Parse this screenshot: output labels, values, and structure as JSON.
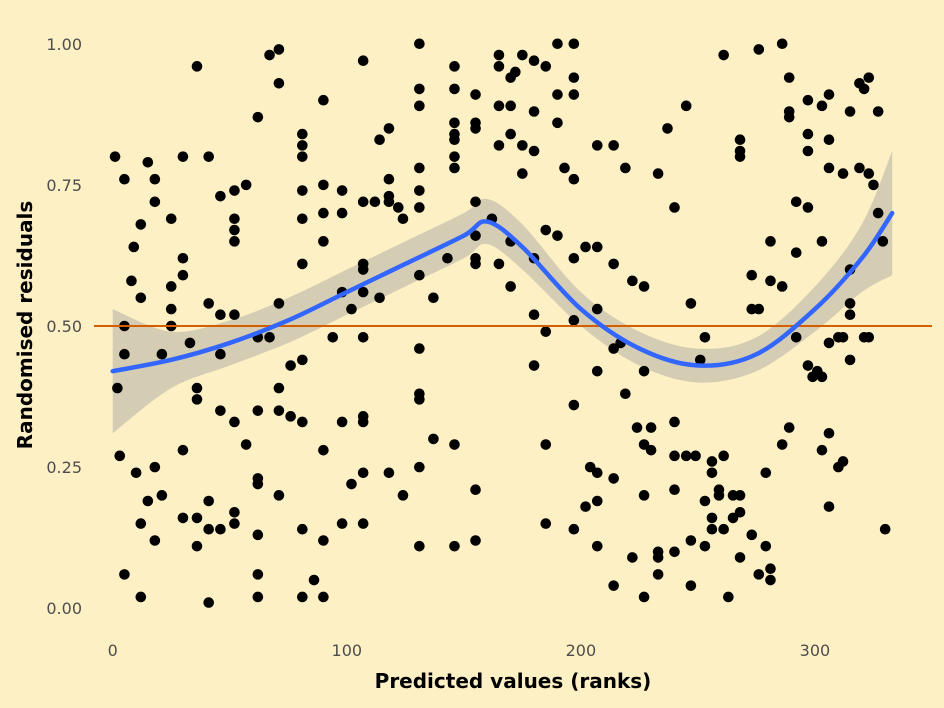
{
  "chart_data": {
    "type": "scatter",
    "xlabel": "Predicted values (ranks)",
    "ylabel": "Randomised residuals",
    "xlim": [
      -8,
      350
    ],
    "ylim": [
      -0.035,
      1.035
    ],
    "x_ticks": [
      0,
      100,
      200,
      300
    ],
    "x_tick_labels": [
      "0",
      "100",
      "200",
      "300"
    ],
    "y_ticks": [
      0.0,
      0.25,
      0.5,
      0.75,
      1.0
    ],
    "y_tick_labels": [
      "0.00",
      "0.25",
      "0.50",
      "0.75",
      "1.00"
    ],
    "grid": false,
    "reference_line": {
      "y": 0.5,
      "color": "#D55E00"
    },
    "colors": {
      "background": "#FEF0C5",
      "points": "#000000",
      "smooth": "#3366FF",
      "ribbon": "#999999"
    },
    "smooth": {
      "x": [
        0,
        25,
        50,
        75,
        100,
        125,
        150,
        160,
        175,
        200,
        225,
        250,
        275,
        300,
        320,
        333
      ],
      "y": [
        0.42,
        0.44,
        0.47,
        0.51,
        0.56,
        0.61,
        0.66,
        0.685,
        0.64,
        0.53,
        0.46,
        0.43,
        0.45,
        0.53,
        0.62,
        0.7
      ],
      "lower": [
        0.31,
        0.39,
        0.43,
        0.47,
        0.52,
        0.57,
        0.62,
        0.645,
        0.6,
        0.5,
        0.43,
        0.4,
        0.42,
        0.49,
        0.56,
        0.59
      ],
      "upper": [
        0.53,
        0.49,
        0.51,
        0.55,
        0.6,
        0.65,
        0.7,
        0.725,
        0.68,
        0.56,
        0.49,
        0.46,
        0.48,
        0.57,
        0.68,
        0.81
      ]
    },
    "points": [
      [
        1,
        0.8
      ],
      [
        2,
        0.39
      ],
      [
        3,
        0.27
      ],
      [
        5,
        0.5
      ],
      [
        5,
        0.45
      ],
      [
        5,
        0.76
      ],
      [
        5,
        0.06
      ],
      [
        8,
        0.58
      ],
      [
        9,
        0.64
      ],
      [
        10,
        0.24
      ],
      [
        12,
        0.55
      ],
      [
        12,
        0.68
      ],
      [
        12,
        0.15
      ],
      [
        12,
        0.02
      ],
      [
        15,
        0.79
      ],
      [
        15,
        0.19
      ],
      [
        18,
        0.76
      ],
      [
        18,
        0.72
      ],
      [
        18,
        0.25
      ],
      [
        18,
        0.12
      ],
      [
        21,
        0.45
      ],
      [
        21,
        0.2
      ],
      [
        25,
        0.69
      ],
      [
        25,
        0.57
      ],
      [
        25,
        0.53
      ],
      [
        25,
        0.5
      ],
      [
        30,
        0.8
      ],
      [
        30,
        0.62
      ],
      [
        30,
        0.59
      ],
      [
        30,
        0.28
      ],
      [
        30,
        0.16
      ],
      [
        33,
        0.47
      ],
      [
        36,
        0.96
      ],
      [
        36,
        0.39
      ],
      [
        36,
        0.37
      ],
      [
        36,
        0.16
      ],
      [
        36,
        0.11
      ],
      [
        41,
        0.8
      ],
      [
        41,
        0.54
      ],
      [
        41,
        0.19
      ],
      [
        41,
        0.14
      ],
      [
        41,
        0.01
      ],
      [
        46,
        0.73
      ],
      [
        46,
        0.52
      ],
      [
        46,
        0.45
      ],
      [
        46,
        0.35
      ],
      [
        46,
        0.14
      ],
      [
        52,
        0.74
      ],
      [
        52,
        0.69
      ],
      [
        52,
        0.67
      ],
      [
        52,
        0.65
      ],
      [
        52,
        0.52
      ],
      [
        52,
        0.33
      ],
      [
        52,
        0.17
      ],
      [
        52,
        0.15
      ],
      [
        57,
        0.75
      ],
      [
        57,
        0.29
      ],
      [
        62,
        0.87
      ],
      [
        62,
        0.48
      ],
      [
        62,
        0.35
      ],
      [
        62,
        0.23
      ],
      [
        62,
        0.22
      ],
      [
        62,
        0.13
      ],
      [
        62,
        0.06
      ],
      [
        62,
        0.02
      ],
      [
        67,
        0.98
      ],
      [
        67,
        0.48
      ],
      [
        71,
        0.99
      ],
      [
        71,
        0.93
      ],
      [
        71,
        0.54
      ],
      [
        71,
        0.39
      ],
      [
        71,
        0.35
      ],
      [
        71,
        0.2
      ],
      [
        76,
        0.43
      ],
      [
        76,
        0.34
      ],
      [
        81,
        0.84
      ],
      [
        81,
        0.82
      ],
      [
        81,
        0.8
      ],
      [
        81,
        0.74
      ],
      [
        81,
        0.69
      ],
      [
        81,
        0.61
      ],
      [
        81,
        0.44
      ],
      [
        81,
        0.33
      ],
      [
        81,
        0.14
      ],
      [
        81,
        0.02
      ],
      [
        86,
        0.05
      ],
      [
        90,
        0.9
      ],
      [
        90,
        0.75
      ],
      [
        90,
        0.7
      ],
      [
        90,
        0.65
      ],
      [
        90,
        0.28
      ],
      [
        90,
        0.12
      ],
      [
        90,
        0.02
      ],
      [
        94,
        0.48
      ],
      [
        98,
        0.74
      ],
      [
        98,
        0.7
      ],
      [
        98,
        0.56
      ],
      [
        98,
        0.33
      ],
      [
        98,
        0.15
      ],
      [
        102,
        0.53
      ],
      [
        102,
        0.22
      ],
      [
        107,
        0.97
      ],
      [
        107,
        0.72
      ],
      [
        107,
        0.61
      ],
      [
        107,
        0.6
      ],
      [
        107,
        0.56
      ],
      [
        107,
        0.48
      ],
      [
        107,
        0.34
      ],
      [
        107,
        0.33
      ],
      [
        107,
        0.24
      ],
      [
        107,
        0.15
      ],
      [
        112,
        0.72
      ],
      [
        114,
        0.83
      ],
      [
        114,
        0.55
      ],
      [
        118,
        0.85
      ],
      [
        118,
        0.76
      ],
      [
        118,
        0.73
      ],
      [
        118,
        0.72
      ],
      [
        118,
        0.24
      ],
      [
        122,
        0.71
      ],
      [
        124,
        0.69
      ],
      [
        124,
        0.2
      ],
      [
        131,
        1.0
      ],
      [
        131,
        0.92
      ],
      [
        131,
        0.89
      ],
      [
        131,
        0.78
      ],
      [
        131,
        0.74
      ],
      [
        131,
        0.71
      ],
      [
        131,
        0.59
      ],
      [
        131,
        0.46
      ],
      [
        131,
        0.38
      ],
      [
        131,
        0.37
      ],
      [
        131,
        0.25
      ],
      [
        131,
        0.11
      ],
      [
        137,
        0.55
      ],
      [
        137,
        0.3
      ],
      [
        143,
        0.62
      ],
      [
        146,
        0.96
      ],
      [
        146,
        0.92
      ],
      [
        146,
        0.86
      ],
      [
        146,
        0.84
      ],
      [
        146,
        0.83
      ],
      [
        146,
        0.8
      ],
      [
        146,
        0.78
      ],
      [
        146,
        0.29
      ],
      [
        146,
        0.11
      ],
      [
        155,
        0.91
      ],
      [
        155,
        0.86
      ],
      [
        155,
        0.85
      ],
      [
        155,
        0.72
      ],
      [
        155,
        0.66
      ],
      [
        155,
        0.62
      ],
      [
        155,
        0.61
      ],
      [
        155,
        0.21
      ],
      [
        155,
        0.12
      ],
      [
        162,
        0.69
      ],
      [
        165,
        0.98
      ],
      [
        165,
        0.96
      ],
      [
        165,
        0.89
      ],
      [
        165,
        0.82
      ],
      [
        165,
        0.61
      ],
      [
        170,
        0.94
      ],
      [
        170,
        0.89
      ],
      [
        170,
        0.84
      ],
      [
        170,
        0.65
      ],
      [
        170,
        0.57
      ],
      [
        172,
        0.95
      ],
      [
        175,
        0.98
      ],
      [
        175,
        0.82
      ],
      [
        175,
        0.77
      ],
      [
        180,
        0.97
      ],
      [
        180,
        0.88
      ],
      [
        180,
        0.81
      ],
      [
        180,
        0.62
      ],
      [
        180,
        0.52
      ],
      [
        180,
        0.43
      ],
      [
        185,
        0.96
      ],
      [
        185,
        0.67
      ],
      [
        185,
        0.49
      ],
      [
        185,
        0.29
      ],
      [
        185,
        0.15
      ],
      [
        190,
        1.0
      ],
      [
        190,
        0.91
      ],
      [
        190,
        0.86
      ],
      [
        190,
        0.66
      ],
      [
        193,
        0.78
      ],
      [
        197,
        1.0
      ],
      [
        197,
        0.94
      ],
      [
        197,
        0.91
      ],
      [
        197,
        0.76
      ],
      [
        197,
        0.62
      ],
      [
        197,
        0.51
      ],
      [
        197,
        0.36
      ],
      [
        197,
        0.14
      ],
      [
        202,
        0.64
      ],
      [
        202,
        0.18
      ],
      [
        204,
        0.25
      ],
      [
        207,
        0.82
      ],
      [
        207,
        0.64
      ],
      [
        207,
        0.53
      ],
      [
        207,
        0.42
      ],
      [
        207,
        0.24
      ],
      [
        207,
        0.19
      ],
      [
        207,
        0.11
      ],
      [
        214,
        0.82
      ],
      [
        214,
        0.61
      ],
      [
        214,
        0.46
      ],
      [
        214,
        0.23
      ],
      [
        214,
        0.04
      ],
      [
        217,
        0.47
      ],
      [
        219,
        0.78
      ],
      [
        219,
        0.38
      ],
      [
        222,
        0.58
      ],
      [
        222,
        0.09
      ],
      [
        224,
        0.32
      ],
      [
        227,
        0.57
      ],
      [
        227,
        0.42
      ],
      [
        227,
        0.29
      ],
      [
        227,
        0.2
      ],
      [
        227,
        0.02
      ],
      [
        230,
        0.32
      ],
      [
        230,
        0.28
      ],
      [
        233,
        0.77
      ],
      [
        233,
        0.1
      ],
      [
        233,
        0.09
      ],
      [
        233,
        0.06
      ],
      [
        237,
        0.85
      ],
      [
        240,
        0.71
      ],
      [
        240,
        0.33
      ],
      [
        240,
        0.27
      ],
      [
        240,
        0.21
      ],
      [
        240,
        0.1
      ],
      [
        245,
        0.89
      ],
      [
        245,
        0.27
      ],
      [
        247,
        0.54
      ],
      [
        247,
        0.12
      ],
      [
        247,
        0.04
      ],
      [
        249,
        0.27
      ],
      [
        251,
        0.44
      ],
      [
        253,
        0.48
      ],
      [
        253,
        0.19
      ],
      [
        253,
        0.11
      ],
      [
        256,
        0.26
      ],
      [
        256,
        0.24
      ],
      [
        256,
        0.16
      ],
      [
        256,
        0.14
      ],
      [
        259,
        0.2
      ],
      [
        259,
        0.21
      ],
      [
        261,
        0.98
      ],
      [
        261,
        0.27
      ],
      [
        261,
        0.14
      ],
      [
        263,
        0.02
      ],
      [
        265,
        0.2
      ],
      [
        265,
        0.16
      ],
      [
        268,
        0.83
      ],
      [
        268,
        0.81
      ],
      [
        268,
        0.8
      ],
      [
        268,
        0.2
      ],
      [
        268,
        0.17
      ],
      [
        268,
        0.09
      ],
      [
        273,
        0.59
      ],
      [
        273,
        0.53
      ],
      [
        273,
        0.13
      ],
      [
        276,
        0.99
      ],
      [
        276,
        0.53
      ],
      [
        276,
        0.06
      ],
      [
        279,
        0.24
      ],
      [
        279,
        0.11
      ],
      [
        281,
        0.65
      ],
      [
        281,
        0.58
      ],
      [
        281,
        0.07
      ],
      [
        281,
        0.05
      ],
      [
        286,
        1.0
      ],
      [
        286,
        0.57
      ],
      [
        286,
        0.29
      ],
      [
        289,
        0.94
      ],
      [
        289,
        0.88
      ],
      [
        289,
        0.87
      ],
      [
        289,
        0.32
      ],
      [
        292,
        0.72
      ],
      [
        292,
        0.63
      ],
      [
        292,
        0.48
      ],
      [
        297,
        0.9
      ],
      [
        297,
        0.84
      ],
      [
        297,
        0.81
      ],
      [
        297,
        0.71
      ],
      [
        297,
        0.43
      ],
      [
        299,
        0.41
      ],
      [
        301,
        0.42
      ],
      [
        303,
        0.89
      ],
      [
        303,
        0.65
      ],
      [
        303,
        0.41
      ],
      [
        303,
        0.28
      ],
      [
        306,
        0.91
      ],
      [
        306,
        0.83
      ],
      [
        306,
        0.78
      ],
      [
        306,
        0.47
      ],
      [
        306,
        0.31
      ],
      [
        306,
        0.18
      ],
      [
        310,
        0.48
      ],
      [
        310,
        0.25
      ],
      [
        312,
        0.77
      ],
      [
        312,
        0.48
      ],
      [
        312,
        0.26
      ],
      [
        315,
        0.88
      ],
      [
        315,
        0.6
      ],
      [
        315,
        0.54
      ],
      [
        315,
        0.52
      ],
      [
        315,
        0.44
      ],
      [
        319,
        0.93
      ],
      [
        319,
        0.78
      ],
      [
        321,
        0.48
      ],
      [
        321,
        0.92
      ],
      [
        323,
        0.94
      ],
      [
        323,
        0.77
      ],
      [
        323,
        0.48
      ],
      [
        325,
        0.75
      ],
      [
        327,
        0.88
      ],
      [
        327,
        0.7
      ],
      [
        329,
        0.65
      ],
      [
        330,
        0.14
      ]
    ]
  }
}
